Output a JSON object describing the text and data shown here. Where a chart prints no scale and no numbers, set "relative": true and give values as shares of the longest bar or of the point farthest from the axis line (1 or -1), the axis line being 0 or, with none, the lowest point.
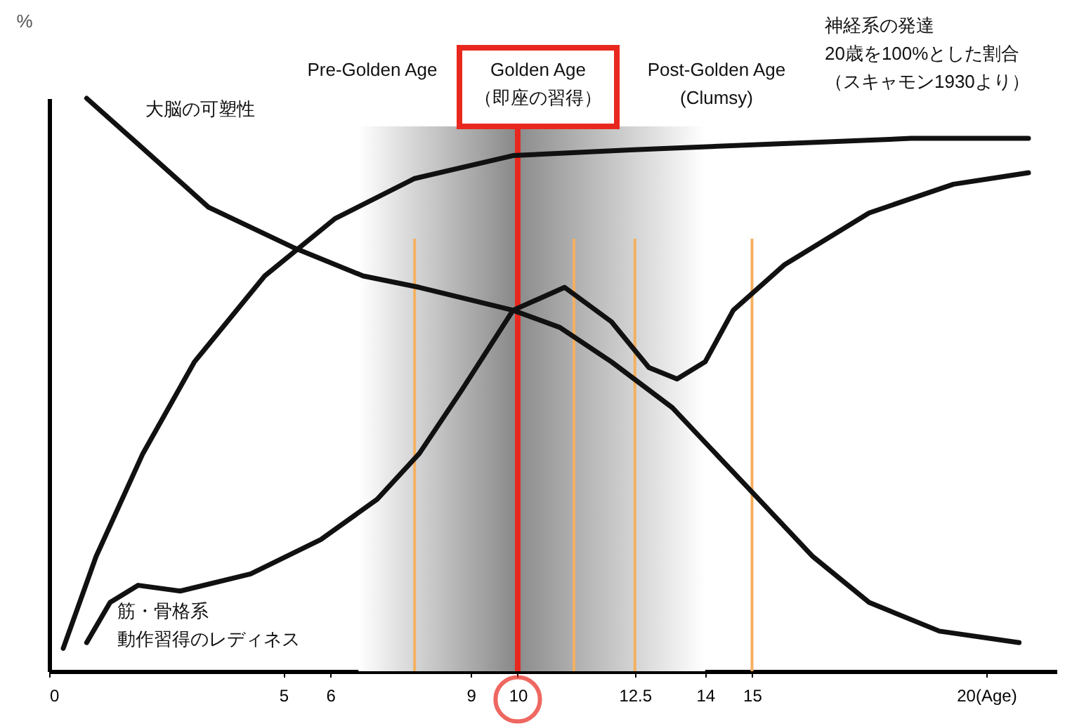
{
  "chart_data": {
    "type": "line",
    "relative": true,
    "ylabel": "%",
    "xlim": [
      0,
      21.5
    ],
    "xticks": [
      0,
      5,
      6,
      9,
      10,
      12.5,
      14,
      15,
      {
        "value": 20,
        "label": "20(Age)"
      }
    ],
    "series": [
      {
        "name": "大脳の可塑性",
        "color": "#111111",
        "x": [
          0.8,
          1.9,
          3.4,
          5.2,
          6.7,
          7.9,
          9.9,
          10.9,
          12.0,
          13.3,
          14.8,
          16.3,
          17.5,
          19.0,
          20.7
        ],
        "values": [
          1.0,
          0.92,
          0.81,
          0.74,
          0.69,
          0.67,
          0.63,
          0.6,
          0.54,
          0.46,
          0.33,
          0.2,
          0.12,
          0.07,
          0.05
        ]
      },
      {
        "name": "神経系の発達20歳を100%とした割合（スキャモン1930より）",
        "color": "#111111",
        "x": [
          0.3,
          1.0,
          2.0,
          3.1,
          4.6,
          6.1,
          7.8,
          9.9,
          12.4,
          15.4,
          18.4,
          20.9
        ],
        "values": [
          0.04,
          0.2,
          0.38,
          0.54,
          0.69,
          0.79,
          0.86,
          0.9,
          0.91,
          0.92,
          0.93,
          0.93
        ]
      },
      {
        "name": "筋・骨格系動作習得のレディネス",
        "color": "#111111",
        "x": [
          0.8,
          1.3,
          1.9,
          2.8,
          4.3,
          5.8,
          7.0,
          7.9,
          8.8,
          9.9,
          11.0,
          12.0,
          12.8,
          13.4,
          14.0,
          14.6,
          15.7,
          17.5,
          19.3,
          20.9
        ],
        "values": [
          0.05,
          0.12,
          0.15,
          0.14,
          0.17,
          0.23,
          0.3,
          0.38,
          0.49,
          0.63,
          0.67,
          0.61,
          0.53,
          0.51,
          0.54,
          0.63,
          0.71,
          0.8,
          0.85,
          0.87
        ]
      }
    ],
    "bands": [
      {
        "axis": "x",
        "from": 6.6,
        "to": 14,
        "color": "#8a8a8a"
      }
    ],
    "ref_lines": [
      {
        "axis": "x",
        "value": 10,
        "color": "#e8281e"
      },
      {
        "axis": "x",
        "value": 7.8,
        "color": "#f5b060"
      },
      {
        "axis": "x",
        "value": 11.2,
        "color": "#f5b060"
      },
      {
        "axis": "x",
        "value": 12.5,
        "color": "#f5b060"
      },
      {
        "axis": "x",
        "value": 15,
        "color": "#f5b060"
      }
    ],
    "annotations": [
      "Pre-Golden Age",
      "Golden Age\n（即座の習得）",
      "Post-Golden Age\n(Clumsy)"
    ],
    "grid": false,
    "legend": false,
    "marker": "none",
    "line_style": "solid"
  }
}
